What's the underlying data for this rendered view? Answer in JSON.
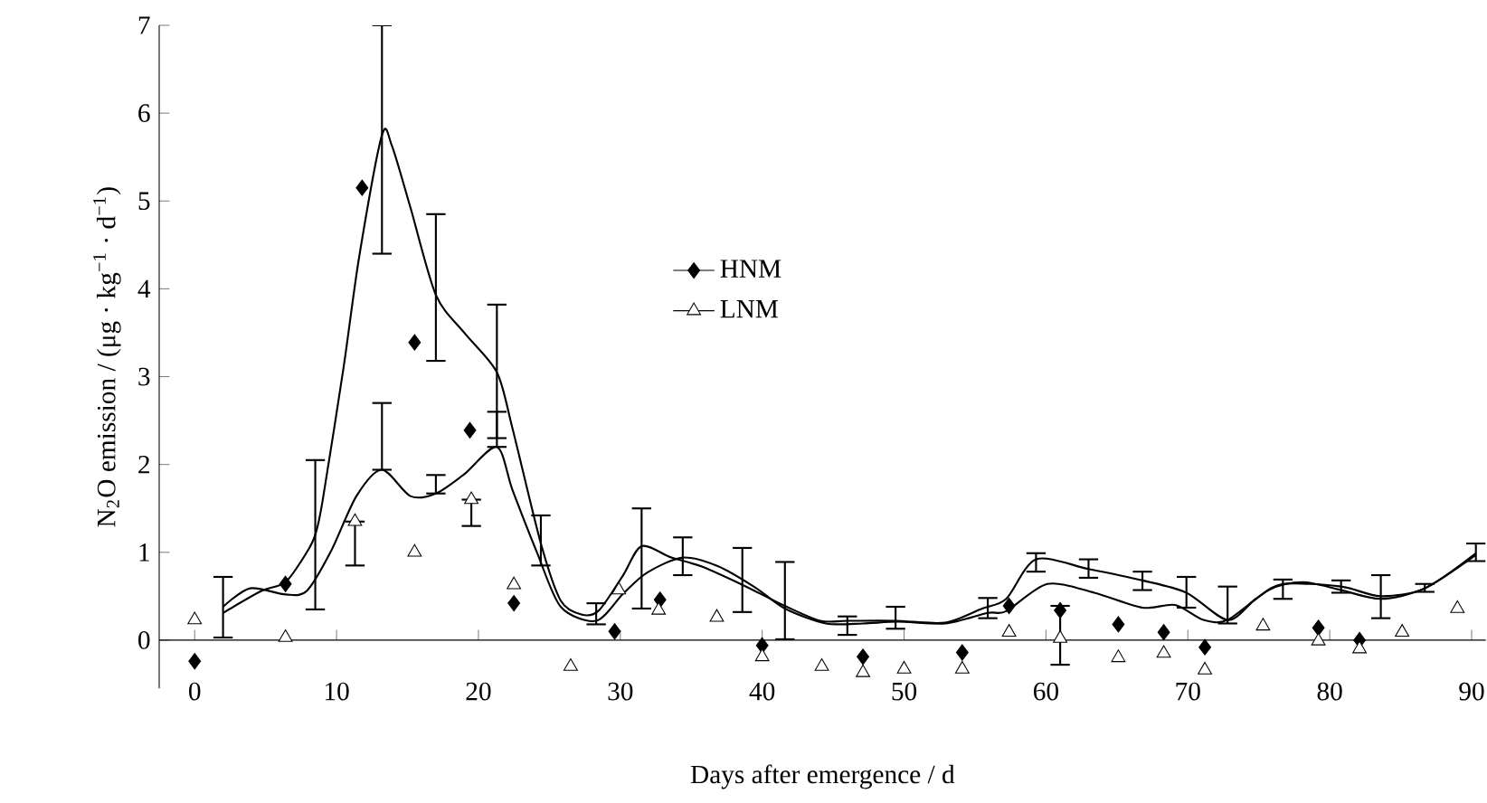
{
  "chart_data": {
    "type": "scatter",
    "xlabel": "Days after emergence / d",
    "ylabel": "N$_{2}$O emission / (μg · kg$^{−1}$ · d$^{−1}$)",
    "xlim": [
      -2.5,
      91
    ],
    "ylim": [
      -0.55,
      7
    ],
    "xticks": [
      0,
      10,
      20,
      30,
      40,
      50,
      60,
      70,
      80,
      90
    ],
    "yticks": [
      0,
      1,
      2,
      3,
      4,
      5,
      6,
      7
    ],
    "grid": false,
    "legend": "center",
    "series": [
      {
        "name": "HNM",
        "marker": "diamond",
        "color": "#000000",
        "x": [
          0,
          6.4,
          11.8,
          15.5,
          19.4,
          22.5,
          29.6,
          32.8,
          40,
          47.1,
          54.1,
          57.4,
          61,
          65.1,
          68.3,
          71.2,
          79.2,
          82.1
        ],
        "values": [
          -0.24,
          0.64,
          5.15,
          3.39,
          2.39,
          0.42,
          0.1,
          0.46,
          -0.06,
          -0.19,
          -0.14,
          0.39,
          0.34,
          0.18,
          0.09,
          -0.08,
          0.14,
          0.0
        ]
      },
      {
        "name": "LNM",
        "marker": "triangle",
        "color": "#000000",
        "x": [
          0,
          6.4,
          11.3,
          15.5,
          19.5,
          22.5,
          26.5,
          29.9,
          32.7,
          36.8,
          40,
          44.2,
          47.1,
          50,
          54.1,
          57.4,
          61,
          65.1,
          68.3,
          71.2,
          75.3,
          79.2,
          82.1,
          85.1,
          89
        ],
        "values": [
          0.23,
          0.03,
          1.35,
          1.0,
          1.6,
          0.63,
          -0.3,
          0.57,
          0.34,
          0.26,
          -0.19,
          -0.3,
          -0.37,
          -0.33,
          -0.33,
          0.09,
          0.02,
          -0.2,
          -0.15,
          -0.34,
          0.16,
          -0.01,
          -0.1,
          0.09,
          0.36
        ],
        "errors": [
          null,
          null,
          [
            0.85,
            1.35
          ],
          null,
          [
            1.3,
            1.6
          ],
          null,
          null,
          null,
          null,
          null,
          null,
          null,
          null,
          null,
          null,
          null,
          [
            -0.28,
            0.39
          ],
          null,
          null,
          null,
          null,
          null,
          null,
          null,
          null
        ]
      },
      {
        "type": "line",
        "marker": "none",
        "color": "#000000",
        "x": [
          2.0,
          4.7,
          6.4,
          7.9,
          8.5,
          9.0,
          10.5,
          11.6,
          13.2,
          13.9,
          15.2,
          17.0,
          19.0,
          21.3,
          22.4,
          24.4,
          25.8,
          27.3,
          28.5,
          30.2,
          31.5,
          33.6,
          35.7,
          38.6,
          41.6,
          44.1,
          46,
          49.4,
          52.9,
          55.5,
          57.2,
          59.3,
          63,
          66.8,
          69.9,
          72.8,
          74.8,
          76.7,
          80.8,
          83.6,
          86.7,
          90.3
        ],
        "values": [
          0.31,
          0.56,
          0.66,
          1.0,
          1.2,
          1.57,
          3.11,
          4.37,
          5.75,
          5.63,
          4.93,
          3.93,
          3.5,
          3.05,
          2.41,
          1.1,
          0.45,
          0.29,
          0.34,
          0.74,
          1.07,
          0.94,
          0.84,
          0.63,
          0.39,
          0.22,
          0.22,
          0.22,
          0.2,
          0.36,
          0.47,
          0.92,
          0.81,
          0.68,
          0.54,
          0.23,
          0.47,
          0.64,
          0.61,
          0.5,
          0.59,
          0.99
        ],
        "errors": [
          null,
          null,
          null,
          null,
          [
            0.35,
            2.05
          ],
          null,
          null,
          null,
          [
            4.4,
            7.0
          ],
          null,
          null,
          [
            3.18,
            4.85
          ],
          null,
          [
            2.3,
            3.82
          ],
          null,
          [
            0.85,
            1.42
          ],
          null,
          null,
          null,
          null,
          [
            0.36,
            1.5
          ],
          null,
          null,
          [
            0.32,
            1.05
          ],
          null,
          null,
          [
            0.06,
            0.27
          ],
          [
            0.13,
            0.38
          ],
          null,
          null,
          null,
          [
            0.78,
            0.99
          ],
          [
            0.71,
            0.92
          ],
          [
            0.57,
            0.78
          ],
          [
            0.37,
            0.72
          ],
          null,
          null,
          [
            0.47,
            0.69
          ],
          null,
          null,
          null,
          [
            0.9,
            1.1
          ]
        ]
      },
      {
        "type": "line",
        "marker": "none",
        "color": "#000000",
        "x": [
          2.0,
          3.9,
          6.4,
          7.9,
          9.6,
          11.4,
          13.2,
          15.2,
          17.0,
          19.0,
          21.3,
          22.4,
          24.1,
          25.8,
          28.3,
          30.2,
          31.9,
          34.4,
          36.9,
          39.5,
          41.6,
          44.5,
          47.1,
          49.6,
          52.9,
          55.9,
          57.2,
          60.1,
          63.4,
          66.8,
          69.1,
          71.1,
          72.8,
          75.7,
          78.1,
          80.8,
          83.6,
          86.7,
          90.3
        ],
        "values": [
          0.38,
          0.59,
          0.52,
          0.56,
          1.01,
          1.64,
          1.94,
          1.64,
          1.67,
          1.89,
          2.2,
          1.71,
          1.01,
          0.38,
          0.22,
          0.53,
          0.77,
          0.94,
          0.84,
          0.6,
          0.36,
          0.19,
          0.19,
          0.21,
          0.19,
          0.31,
          0.33,
          0.64,
          0.54,
          0.37,
          0.4,
          0.23,
          0.23,
          0.57,
          0.66,
          0.57,
          0.47,
          0.59,
          0.97
        ],
        "errors": [
          [
            0.03,
            0.72
          ],
          null,
          null,
          null,
          null,
          null,
          [
            1.94,
            2.7
          ],
          null,
          [
            1.67,
            1.88
          ],
          null,
          [
            2.2,
            2.6
          ],
          null,
          null,
          null,
          [
            0.18,
            0.42
          ],
          null,
          null,
          [
            0.74,
            1.17
          ],
          null,
          null,
          [
            0.01,
            0.89
          ],
          null,
          null,
          null,
          null,
          [
            0.25,
            0.48
          ],
          null,
          null,
          null,
          null,
          null,
          null,
          [
            0.19,
            0.61
          ],
          null,
          null,
          [
            0.54,
            0.68
          ],
          [
            0.25,
            0.74
          ],
          [
            0.55,
            0.64
          ],
          null
        ]
      }
    ]
  }
}
